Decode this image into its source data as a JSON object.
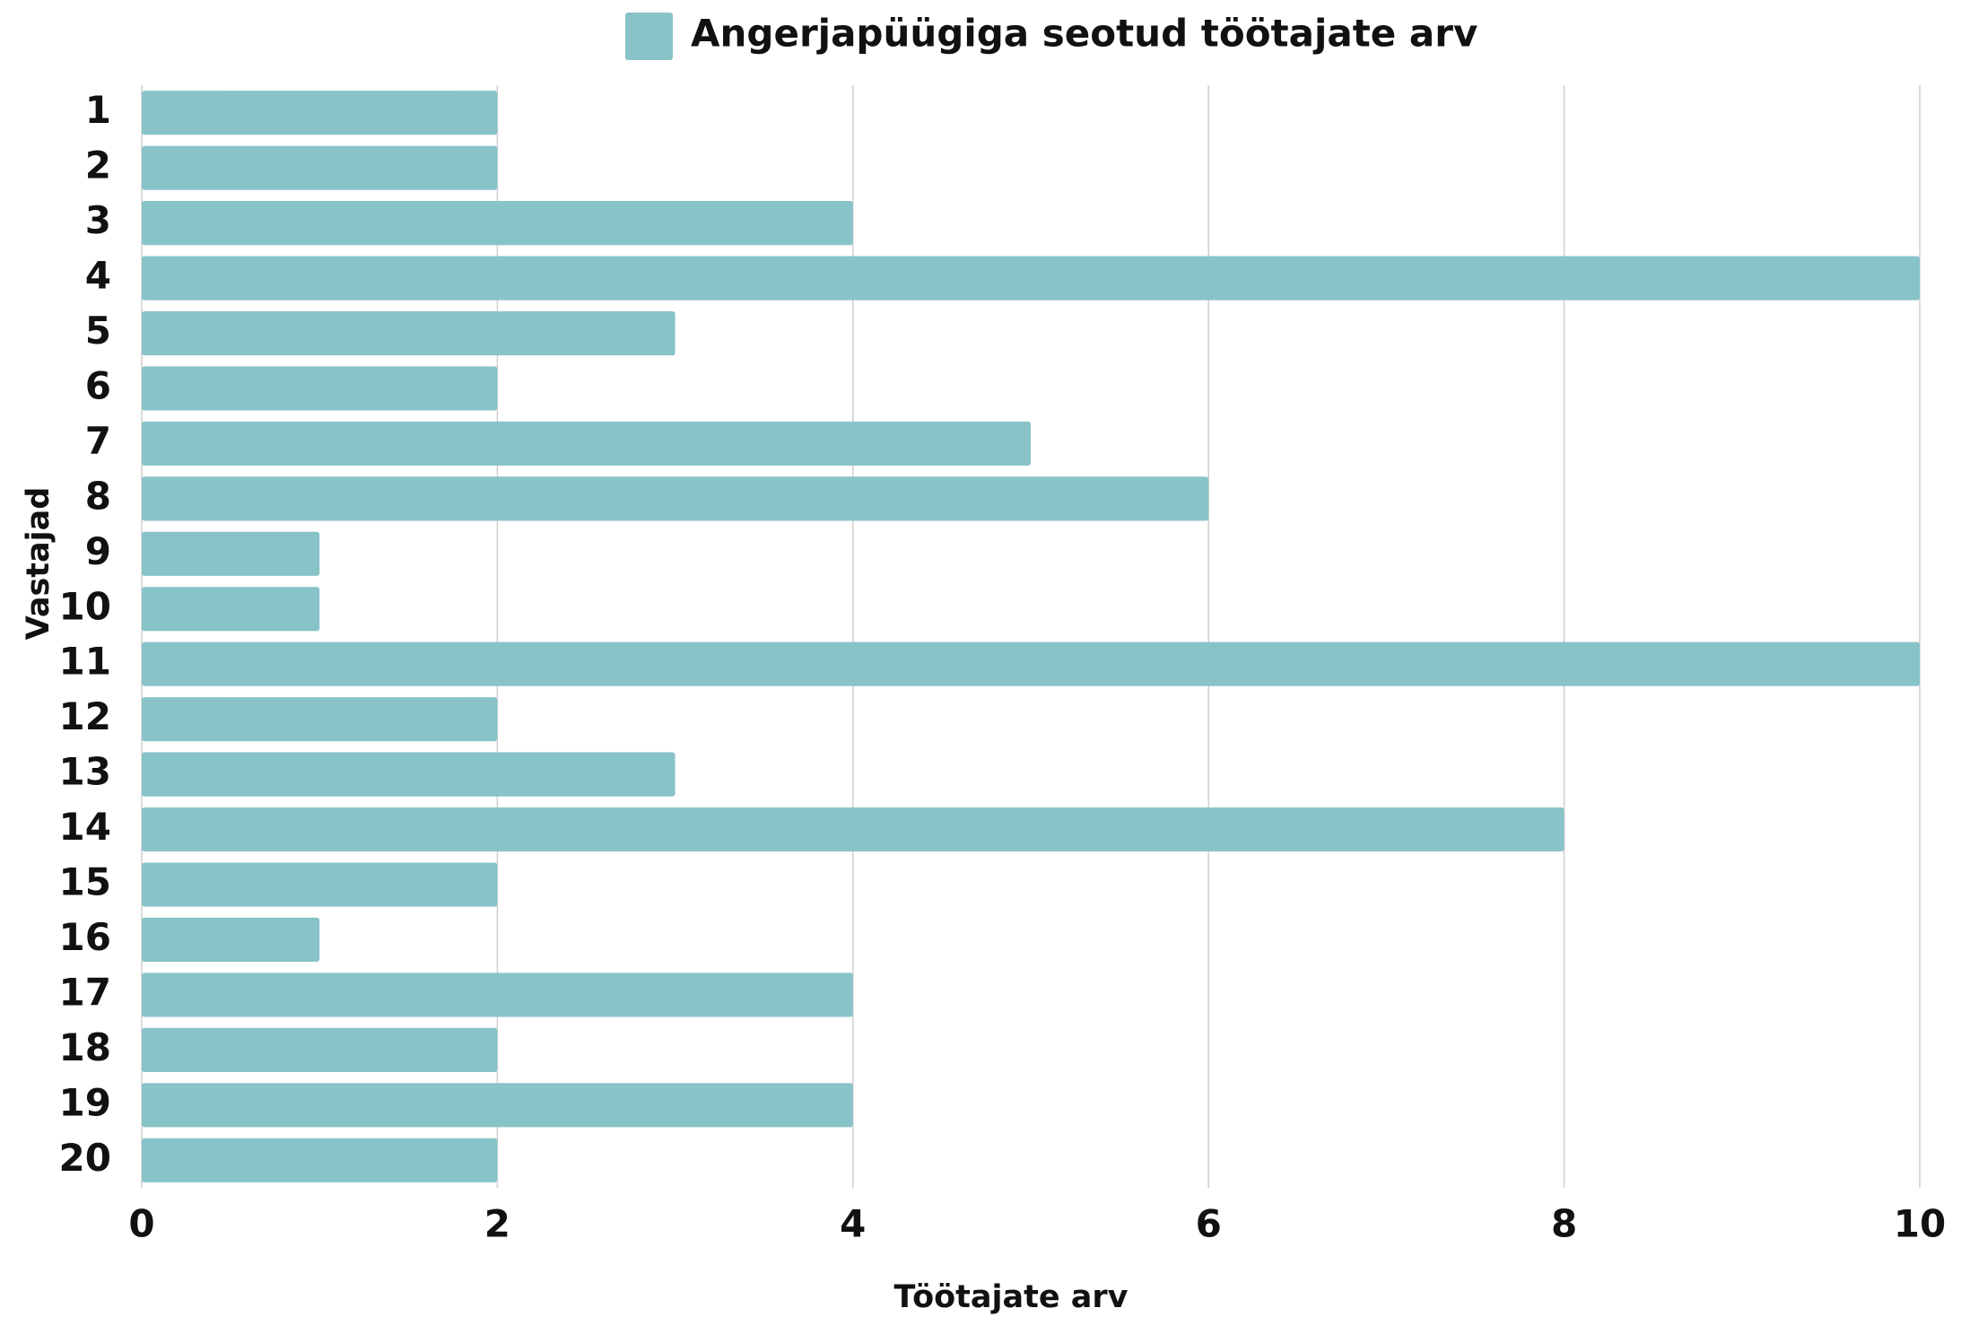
{
  "chart_data": {
    "type": "bar",
    "orientation": "horizontal",
    "legend_position": "top",
    "x_label": "Töötajate arv",
    "y_label": "Vastajad",
    "categories": [
      "1",
      "2",
      "3",
      "4",
      "5",
      "6",
      "7",
      "8",
      "9",
      "10",
      "11",
      "12",
      "13",
      "14",
      "15",
      "16",
      "17",
      "18",
      "19",
      "20"
    ],
    "series": [
      {
        "name": "Angerjapüügiga seotud töötajate arv",
        "color": "#88c3c8",
        "values": [
          2,
          2,
          4,
          10,
          3,
          2,
          5,
          6,
          1,
          1,
          10,
          2,
          3,
          8,
          2,
          1,
          4,
          2,
          4,
          2
        ]
      }
    ],
    "xlim": [
      0,
      10
    ],
    "xticks": [
      0,
      2,
      4,
      6,
      8,
      10
    ],
    "grid": true
  }
}
